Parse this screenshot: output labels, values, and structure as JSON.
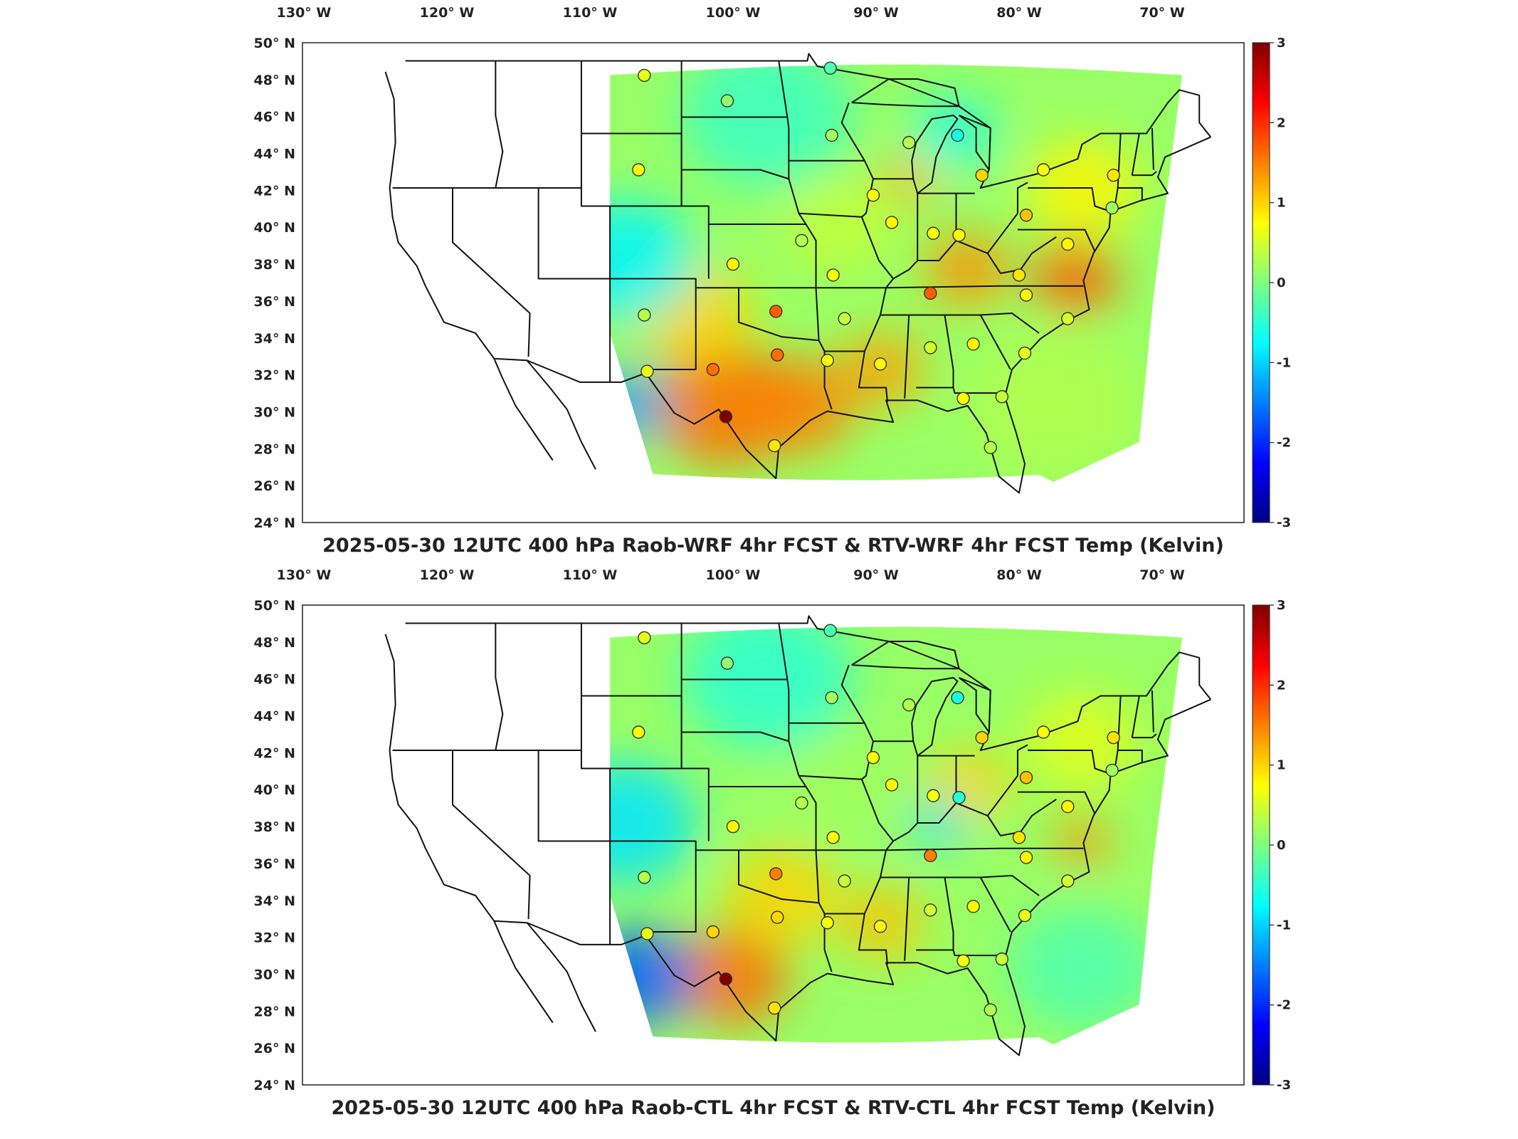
{
  "colors": {
    "scale": [
      "#00007f",
      "#0000ff",
      "#007fff",
      "#00ffff",
      "#7fff7f",
      "#ffff00",
      "#ff7f00",
      "#ff0000",
      "#7f0000"
    ],
    "background_field": "#8fe89a",
    "outline": "#111111"
  },
  "x_ticks": [
    "130° W",
    "120° W",
    "110° W",
    "100° W",
    "90° W",
    "80° W",
    "70° W"
  ],
  "y_ticks": [
    "50° N",
    "48° N",
    "46° N",
    "44° N",
    "42° N",
    "40° N",
    "38° N",
    "36° N",
    "34° N",
    "32° N",
    "30° N",
    "28° N",
    "26° N",
    "24° N"
  ],
  "colorbar": {
    "min": -3,
    "max": 3,
    "ticks": [
      "3",
      "2",
      "1",
      "0",
      "-1",
      "-2",
      "-3"
    ]
  },
  "panels": [
    {
      "title": "2025-05-30 12UTC 400 hPa Raob-WRF 4hr FCST & RTV-WRF 4hr FCST Temp (Kelvin)",
      "blobs": [
        {
          "lon": -101,
          "lat": 30,
          "value": 1.6,
          "r": 5
        },
        {
          "lon": -96,
          "lat": 30,
          "value": 1.5,
          "r": 4
        },
        {
          "lon": -90,
          "lat": 32,
          "value": 1.3,
          "r": 3
        },
        {
          "lon": -84,
          "lat": 37.5,
          "value": 1.4,
          "r": 3
        },
        {
          "lon": -76.5,
          "lat": 37,
          "value": 1.7,
          "r": 3
        },
        {
          "lon": -88,
          "lat": 42.5,
          "value": 1.2,
          "r": 2
        },
        {
          "lon": -103,
          "lat": 35,
          "value": 1.0,
          "r": 4
        },
        {
          "lon": -76,
          "lat": 42,
          "value": 0.8,
          "r": 4
        },
        {
          "lon": -108,
          "lat": 38,
          "value": -0.8,
          "r": 5
        },
        {
          "lon": -108,
          "lat": 30,
          "value": -1.3,
          "r": 3
        },
        {
          "lon": -98,
          "lat": 46,
          "value": -0.4,
          "r": 6
        },
        {
          "lon": -85,
          "lat": 45,
          "value": -0.6,
          "r": 3
        },
        {
          "lon": -78,
          "lat": 30,
          "value": 0.3,
          "r": 6
        },
        {
          "lon": -93,
          "lat": 40,
          "value": 0.4,
          "r": 4
        }
      ],
      "stations": [
        {
          "lon": -106.6,
          "lat": 48.2,
          "value": 0.6
        },
        {
          "lon": -100.8,
          "lat": 46.8,
          "value": 0.1
        },
        {
          "lon": -93.5,
          "lat": 44.9,
          "value": 0.2
        },
        {
          "lon": -93.6,
          "lat": 48.6,
          "value": -0.3
        },
        {
          "lon": -88.1,
          "lat": 44.5,
          "value": 0.3
        },
        {
          "lon": -84.7,
          "lat": 44.9,
          "value": -0.6
        },
        {
          "lon": -83.0,
          "lat": 42.7,
          "value": 1.0
        },
        {
          "lon": -79.9,
          "lat": 40.5,
          "value": 1.1
        },
        {
          "lon": -77.0,
          "lat": 38.9,
          "value": 0.8
        },
        {
          "lon": -73.9,
          "lat": 40.9,
          "value": 0.2
        },
        {
          "lon": -78.7,
          "lat": 43.0,
          "value": 0.7
        },
        {
          "lon": -73.8,
          "lat": 42.7,
          "value": 0.9
        },
        {
          "lon": -107.0,
          "lat": 43.0,
          "value": 0.7
        },
        {
          "lon": -90.6,
          "lat": 41.6,
          "value": 0.7
        },
        {
          "lon": -89.3,
          "lat": 40.1,
          "value": 0.8
        },
        {
          "lon": -86.4,
          "lat": 39.5,
          "value": 0.7
        },
        {
          "lon": -84.6,
          "lat": 39.4,
          "value": 0.7
        },
        {
          "lon": -95.6,
          "lat": 39.1,
          "value": 0.3
        },
        {
          "lon": -100.4,
          "lat": 37.8,
          "value": 0.8
        },
        {
          "lon": -93.4,
          "lat": 37.2,
          "value": 0.7
        },
        {
          "lon": -86.6,
          "lat": 36.2,
          "value": 1.7
        },
        {
          "lon": -80.4,
          "lat": 37.2,
          "value": 0.9
        },
        {
          "lon": -79.9,
          "lat": 36.1,
          "value": 0.8
        },
        {
          "lon": -77.0,
          "lat": 34.8,
          "value": 0.5
        },
        {
          "lon": -80.0,
          "lat": 32.9,
          "value": 0.6
        },
        {
          "lon": -83.6,
          "lat": 33.4,
          "value": 0.8
        },
        {
          "lon": -86.6,
          "lat": 33.2,
          "value": 0.5
        },
        {
          "lon": -90.1,
          "lat": 32.3,
          "value": 0.8
        },
        {
          "lon": -92.6,
          "lat": 34.8,
          "value": 0.4
        },
        {
          "lon": -93.8,
          "lat": 32.5,
          "value": 0.7
        },
        {
          "lon": -97.4,
          "lat": 35.2,
          "value": 1.7
        },
        {
          "lon": -97.3,
          "lat": 32.8,
          "value": 1.6
        },
        {
          "lon": -101.8,
          "lat": 32.0,
          "value": 1.6
        },
        {
          "lon": -106.6,
          "lat": 35.0,
          "value": 0.3
        },
        {
          "lon": -106.4,
          "lat": 31.9,
          "value": 0.6
        },
        {
          "lon": -100.9,
          "lat": 29.4,
          "value": 3.0
        },
        {
          "lon": -97.5,
          "lat": 27.8,
          "value": 0.9
        },
        {
          "lon": -84.3,
          "lat": 30.4,
          "value": 0.7
        },
        {
          "lon": -81.6,
          "lat": 30.5,
          "value": 0.4
        },
        {
          "lon": -82.4,
          "lat": 27.7,
          "value": 0.3
        }
      ]
    },
    {
      "title": "2025-05-30 12UTC 400 hPa Raob-CTL 4hr FCST & RTV-CTL 4hr FCST Temp (Kelvin)",
      "blobs": [
        {
          "lon": -100.5,
          "lat": 29.5,
          "value": 1.6,
          "r": 4
        },
        {
          "lon": -97,
          "lat": 34,
          "value": 1.0,
          "r": 4
        },
        {
          "lon": -90,
          "lat": 32.5,
          "value": 1.1,
          "r": 3
        },
        {
          "lon": -76,
          "lat": 37,
          "value": 1.4,
          "r": 2
        },
        {
          "lon": -84,
          "lat": 40,
          "value": 1.0,
          "r": 3
        },
        {
          "lon": -107,
          "lat": 29.5,
          "value": -1.7,
          "r": 4
        },
        {
          "lon": -108,
          "lat": 38,
          "value": -0.9,
          "r": 5
        },
        {
          "lon": -86,
          "lat": 38,
          "value": -0.9,
          "r": 2
        },
        {
          "lon": -98,
          "lat": 46,
          "value": -0.5,
          "r": 6
        },
        {
          "lon": -76,
          "lat": 30,
          "value": -0.3,
          "r": 5
        },
        {
          "lon": -76,
          "lat": 42.5,
          "value": 0.6,
          "r": 4
        },
        {
          "lon": -93,
          "lat": 40,
          "value": 0.2,
          "r": 4
        }
      ],
      "stations": [
        {
          "lon": -106.6,
          "lat": 48.2,
          "value": 0.6
        },
        {
          "lon": -100.8,
          "lat": 46.8,
          "value": 0.1
        },
        {
          "lon": -93.5,
          "lat": 44.9,
          "value": 0.2
        },
        {
          "lon": -93.6,
          "lat": 48.6,
          "value": -0.3
        },
        {
          "lon": -88.1,
          "lat": 44.5,
          "value": 0.3
        },
        {
          "lon": -84.7,
          "lat": 44.9,
          "value": -0.6
        },
        {
          "lon": -83.0,
          "lat": 42.7,
          "value": 1.0
        },
        {
          "lon": -79.9,
          "lat": 40.5,
          "value": 1.1
        },
        {
          "lon": -77.0,
          "lat": 38.9,
          "value": 0.8
        },
        {
          "lon": -73.9,
          "lat": 40.9,
          "value": 0.2
        },
        {
          "lon": -78.7,
          "lat": 43.0,
          "value": 0.7
        },
        {
          "lon": -73.8,
          "lat": 42.7,
          "value": 0.9
        },
        {
          "lon": -107.0,
          "lat": 43.0,
          "value": 0.7
        },
        {
          "lon": -90.6,
          "lat": 41.6,
          "value": 0.7
        },
        {
          "lon": -89.3,
          "lat": 40.1,
          "value": 0.8
        },
        {
          "lon": -86.4,
          "lat": 39.5,
          "value": 0.7
        },
        {
          "lon": -84.6,
          "lat": 39.4,
          "value": -0.5
        },
        {
          "lon": -95.6,
          "lat": 39.1,
          "value": 0.3
        },
        {
          "lon": -100.4,
          "lat": 37.8,
          "value": 0.8
        },
        {
          "lon": -93.4,
          "lat": 37.2,
          "value": 0.7
        },
        {
          "lon": -86.6,
          "lat": 36.2,
          "value": 1.5
        },
        {
          "lon": -80.4,
          "lat": 37.2,
          "value": 0.9
        },
        {
          "lon": -79.9,
          "lat": 36.1,
          "value": 0.8
        },
        {
          "lon": -77.0,
          "lat": 34.8,
          "value": 0.5
        },
        {
          "lon": -80.0,
          "lat": 32.9,
          "value": 0.6
        },
        {
          "lon": -83.6,
          "lat": 33.4,
          "value": 0.8
        },
        {
          "lon": -86.6,
          "lat": 33.2,
          "value": 0.5
        },
        {
          "lon": -90.1,
          "lat": 32.3,
          "value": 0.8
        },
        {
          "lon": -92.6,
          "lat": 34.8,
          "value": 0.4
        },
        {
          "lon": -93.8,
          "lat": 32.5,
          "value": 0.7
        },
        {
          "lon": -97.4,
          "lat": 35.2,
          "value": 1.5
        },
        {
          "lon": -97.3,
          "lat": 32.8,
          "value": 1.0
        },
        {
          "lon": -101.8,
          "lat": 32.0,
          "value": 1.0
        },
        {
          "lon": -106.6,
          "lat": 35.0,
          "value": 0.3
        },
        {
          "lon": -106.4,
          "lat": 31.9,
          "value": 0.6
        },
        {
          "lon": -100.9,
          "lat": 29.4,
          "value": 3.0
        },
        {
          "lon": -97.5,
          "lat": 27.8,
          "value": 0.9
        },
        {
          "lon": -84.3,
          "lat": 30.4,
          "value": 0.7
        },
        {
          "lon": -81.6,
          "lat": 30.5,
          "value": 0.4
        },
        {
          "lon": -82.4,
          "lat": 27.7,
          "value": 0.3
        }
      ]
    }
  ]
}
